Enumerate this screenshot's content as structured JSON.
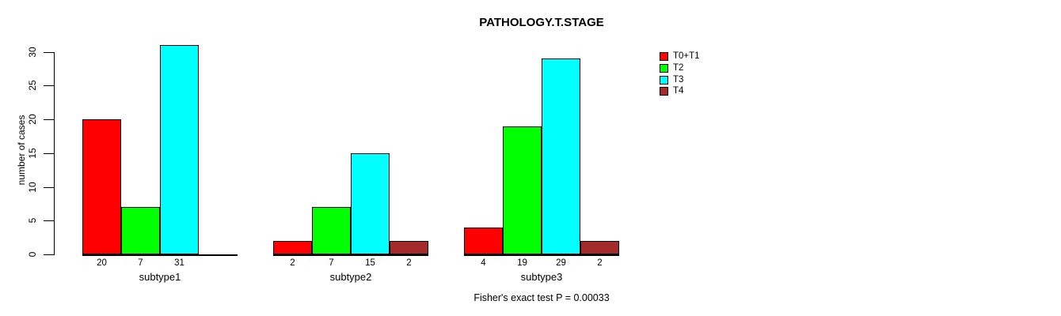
{
  "chart_data": {
    "type": "bar",
    "title": "PATHOLOGY.T.STAGE",
    "ylabel": "number of cases",
    "xlabel": "",
    "ylim": [
      0,
      31
    ],
    "yticks": [
      0,
      5,
      10,
      15,
      20,
      25,
      30
    ],
    "grid": false,
    "legend_position": "right",
    "categories": [
      "subtype1",
      "subtype2",
      "subtype3"
    ],
    "series": [
      {
        "name": "T0+T1",
        "color": "#FF0000",
        "values": [
          20,
          2,
          4
        ]
      },
      {
        "name": "T2",
        "color": "#00FF00",
        "values": [
          7,
          7,
          19
        ]
      },
      {
        "name": "T3",
        "color": "#00FFFF",
        "values": [
          31,
          15,
          29
        ]
      },
      {
        "name": "T4",
        "color": "#A52A2A",
        "values": [
          0,
          2,
          2
        ]
      }
    ],
    "bar_labels": {
      "subtype1": [
        "20",
        "7",
        "31",
        ""
      ],
      "subtype2": [
        "2",
        "7",
        "15",
        "2"
      ],
      "subtype3": [
        "4",
        "19",
        "29",
        "2"
      ]
    },
    "annotation": "Fisher's exact test P = 0.00033"
  }
}
